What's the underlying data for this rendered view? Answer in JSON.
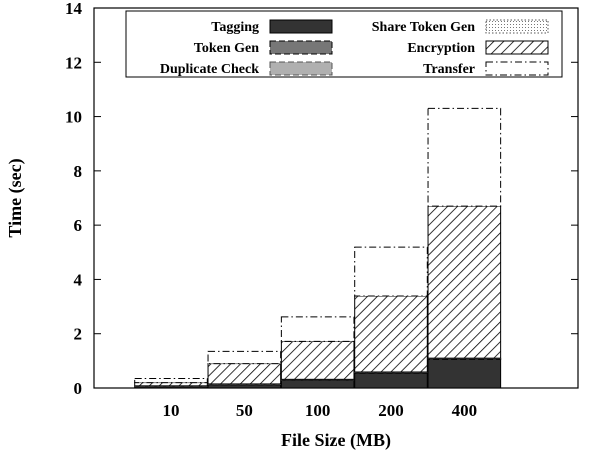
{
  "chart_data": {
    "type": "bar",
    "stacked": true,
    "xlabel": "File Size (MB)",
    "ylabel": "Time (sec)",
    "ylim": [
      0,
      14
    ],
    "yticks": [
      0,
      2,
      4,
      6,
      8,
      10,
      12,
      14
    ],
    "categories": [
      "10",
      "50",
      "100",
      "200",
      "400"
    ],
    "legend": {
      "placement": "top",
      "columns": 2
    },
    "grid": false,
    "series": [
      {
        "name": "Tagging",
        "values": [
          0.05,
          0.12,
          0.28,
          0.55,
          1.05
        ],
        "color": "#333333",
        "pattern": "solid-dark"
      },
      {
        "name": "Token Gen",
        "values": [
          0.01,
          0.01,
          0.02,
          0.02,
          0.03
        ],
        "color": "#777777",
        "pattern": "solid-mid"
      },
      {
        "name": "Duplicate Check",
        "values": [
          0.01,
          0.01,
          0.01,
          0.01,
          0.01
        ],
        "color": "#b0b0b0",
        "pattern": "solid-light"
      },
      {
        "name": "Share Token Gen",
        "values": [
          0.01,
          0.01,
          0.01,
          0.01,
          0.01
        ],
        "color": "#dddddd",
        "pattern": "dotted"
      },
      {
        "name": "Encryption",
        "values": [
          0.12,
          0.75,
          1.4,
          2.8,
          5.6
        ],
        "color": "#000000",
        "pattern": "hatch"
      },
      {
        "name": "Transfer",
        "values": [
          0.15,
          0.45,
          0.9,
          1.8,
          3.6
        ],
        "color": "#ffffff",
        "pattern": "none"
      }
    ]
  }
}
